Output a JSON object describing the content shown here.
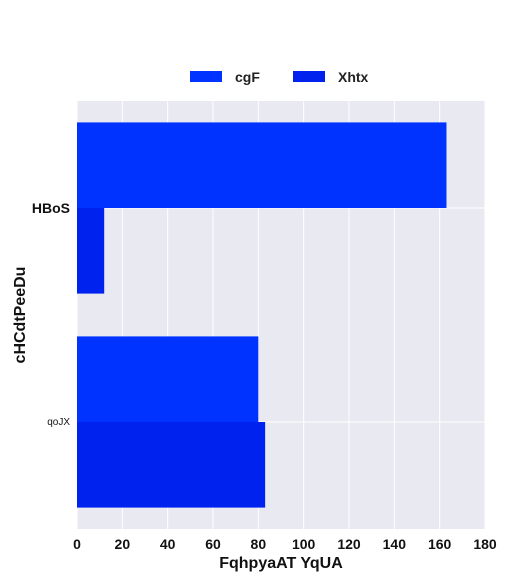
{
  "chart_data": {
    "type": "bar",
    "orientation": "horizontal",
    "categories": [
      "HBoS",
      "qoJX"
    ],
    "series": [
      {
        "name": "cgF",
        "values": [
          163,
          80
        ],
        "color": "#0033ff"
      },
      {
        "name": "Xhtx",
        "values": [
          12,
          83
        ],
        "color": "#0022ee"
      }
    ],
    "xlabel": "FqhpyaAT YqUA",
    "ylabel": "cHCdtPeeDu",
    "xlim": [
      0,
      180
    ],
    "xticks": [
      "0",
      "20",
      "40",
      "60",
      "80",
      "100",
      "120",
      "140",
      "160",
      "180"
    ],
    "grid": true,
    "legend_position": "top-center",
    "background_color": "#e9e9f2"
  }
}
